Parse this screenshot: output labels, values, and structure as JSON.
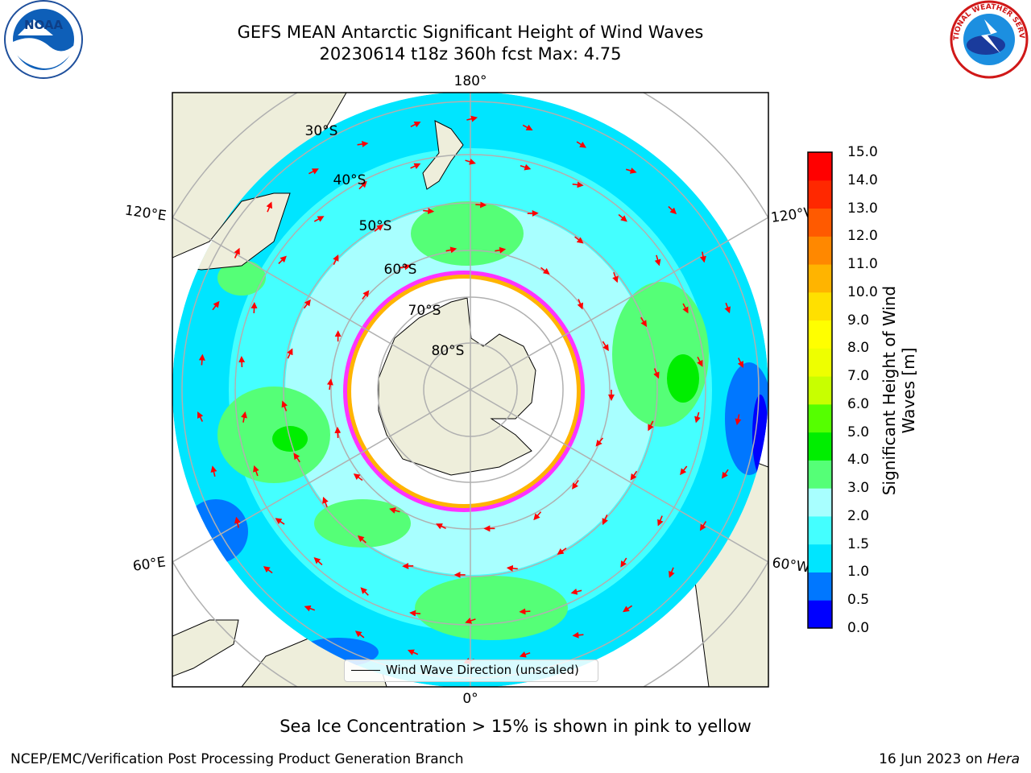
{
  "title": {
    "line1": "GEFS MEAN Antarctic Significant Height of Wind Waves",
    "line2": "20230614 t18z 360h fcst   Max: 4.75"
  },
  "logos": {
    "noaa": {
      "text": "NOAA",
      "icon": "noaa-logo-icon"
    },
    "nws": {
      "text": "NATIONAL WEATHER SERVICE",
      "icon": "nws-logo-icon"
    }
  },
  "map": {
    "projection": "south-polar-stereographic",
    "longitude_labels": [
      "180°",
      "120°E",
      "120°W",
      "60°E",
      "60°W",
      "0°"
    ],
    "latitude_labels": [
      "30°S",
      "40°S",
      "50°S",
      "60°S",
      "70°S",
      "80°S"
    ],
    "legend": "Wind Wave Direction (unscaled)",
    "colors": {
      "land": "#eeeedb",
      "sea_ice": "#ffffff",
      "ice_edge": "#ff33ff",
      "arrow": "#ff0000"
    }
  },
  "colorbar": {
    "label": "Significant Height of Wind Waves [m]",
    "ticks": [
      "0.0",
      "0.5",
      "1.0",
      "1.5",
      "2.0",
      "3.0",
      "4.0",
      "5.0",
      "6.0",
      "7.0",
      "8.0",
      "9.0",
      "10.0",
      "11.0",
      "12.0",
      "13.0",
      "14.0",
      "15.0"
    ],
    "colors": [
      "#0000ff",
      "#0077ff",
      "#00e5ff",
      "#44ffff",
      "#a8ffff",
      "#55ff77",
      "#00ee00",
      "#55ff00",
      "#c8ff00",
      "#eeff00",
      "#ffff00",
      "#ffe000",
      "#ffb400",
      "#ff8800",
      "#ff5a00",
      "#ff2800",
      "#ff0000"
    ]
  },
  "caption": "Sea Ice Concentration > 15% is shown in pink to yellow",
  "footer": {
    "left": "NCEP/EMC/Verification Post Processing Product Generation Branch",
    "right_date": "16 Jun 2023 on ",
    "right_host": "Hera"
  }
}
